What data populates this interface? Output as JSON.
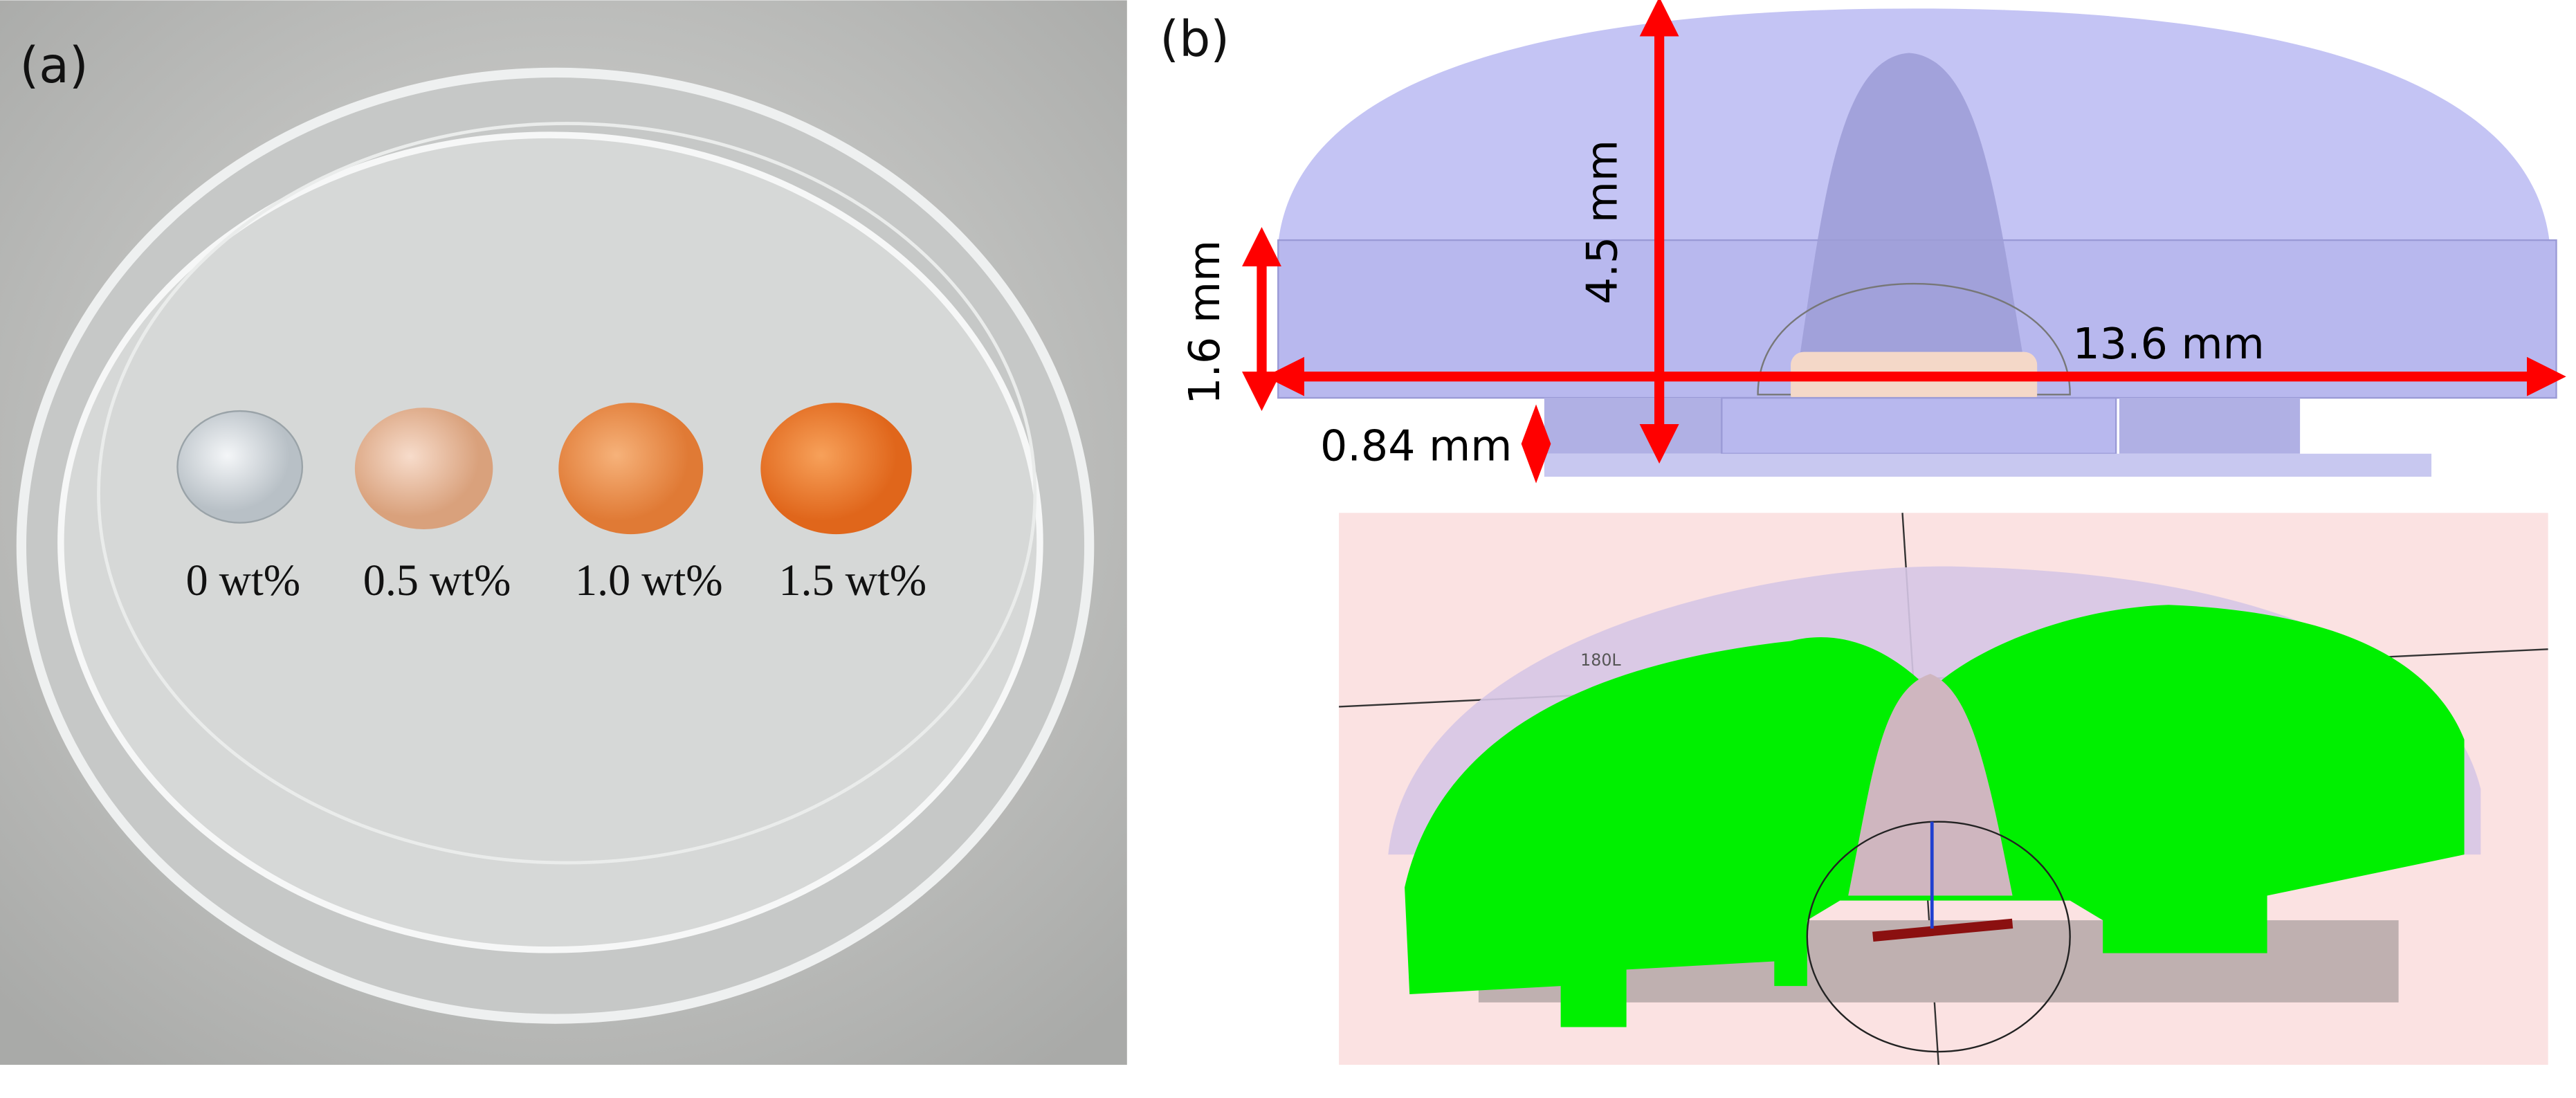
{
  "panel_a": {
    "label": "(a)",
    "samples": [
      "0 wt%",
      "0.5 wt%",
      "1.0 wt%",
      "1.5 wt%"
    ]
  },
  "panel_b": {
    "label": "(b)",
    "dimensions": {
      "height": "4.5 mm",
      "base_height": "1.6 mm",
      "width": "13.6 mm",
      "step": "0.84 mm"
    },
    "annotation": "180L"
  }
}
